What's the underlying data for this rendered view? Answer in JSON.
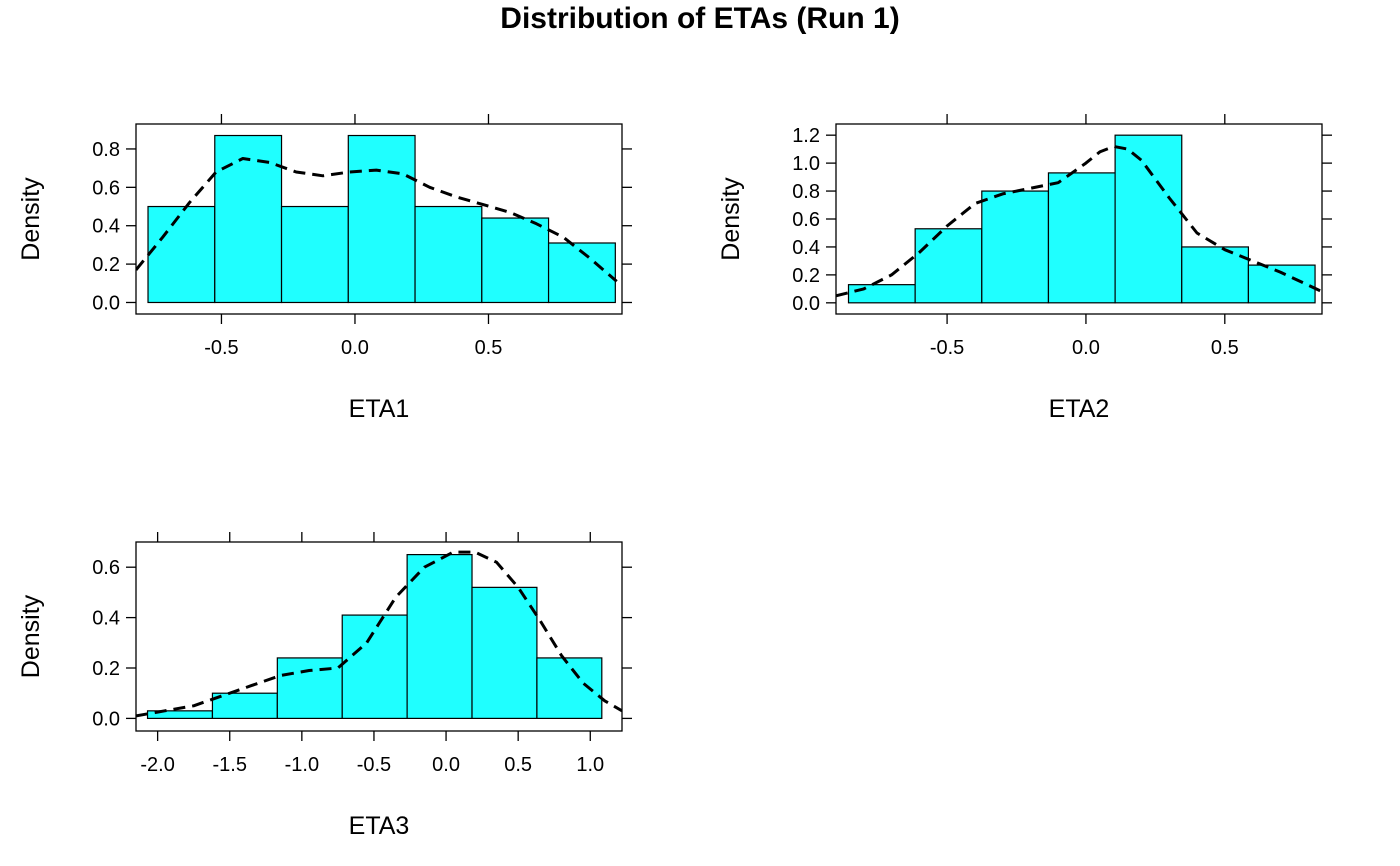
{
  "title": "Distribution of ETAs (Run 1)",
  "colors": {
    "bar_fill": "#1FFFFF",
    "bar_stroke": "#000000",
    "density_line": "#000000"
  },
  "chart_data": [
    {
      "type": "histogram",
      "xlabel": "ETA1",
      "ylabel": "Density",
      "xlim": [
        -0.82,
        1.0
      ],
      "ylim": [
        -0.06,
        0.93
      ],
      "xticks": [
        -0.5,
        0.0,
        0.5
      ],
      "xtick_labels": [
        "-0.5",
        "0.0",
        "0.5"
      ],
      "yticks": [
        0.0,
        0.2,
        0.4,
        0.6,
        0.8
      ],
      "ytick_labels": [
        "0.0",
        "0.2",
        "0.4",
        "0.6",
        "0.8"
      ],
      "bins": [
        {
          "x0": -0.775,
          "x1": -0.525,
          "density": 0.5
        },
        {
          "x0": -0.525,
          "x1": -0.275,
          "density": 0.87
        },
        {
          "x0": -0.275,
          "x1": -0.025,
          "density": 0.5
        },
        {
          "x0": -0.025,
          "x1": 0.225,
          "density": 0.87
        },
        {
          "x0": 0.225,
          "x1": 0.475,
          "density": 0.5
        },
        {
          "x0": 0.475,
          "x1": 0.725,
          "density": 0.44
        },
        {
          "x0": 0.725,
          "x1": 0.975,
          "density": 0.31
        }
      ],
      "density_curve": {
        "x": [
          -0.82,
          -0.72,
          -0.62,
          -0.52,
          -0.42,
          -0.32,
          -0.22,
          -0.12,
          -0.02,
          0.08,
          0.18,
          0.28,
          0.38,
          0.48,
          0.58,
          0.68,
          0.78,
          0.88,
          0.98
        ],
        "y": [
          0.17,
          0.34,
          0.52,
          0.68,
          0.75,
          0.73,
          0.68,
          0.66,
          0.68,
          0.69,
          0.67,
          0.6,
          0.55,
          0.51,
          0.47,
          0.41,
          0.34,
          0.23,
          0.11
        ]
      }
    },
    {
      "type": "histogram",
      "xlabel": "ETA2",
      "ylabel": "Density",
      "xlim": [
        -0.9,
        0.85
      ],
      "ylim": [
        -0.08,
        1.28
      ],
      "xticks": [
        -0.5,
        0.0,
        0.5
      ],
      "xtick_labels": [
        "-0.5",
        "0.0",
        "0.5"
      ],
      "yticks": [
        0.0,
        0.2,
        0.4,
        0.6,
        0.8,
        1.0,
        1.2
      ],
      "ytick_labels": [
        "0.0",
        "0.2",
        "0.4",
        "0.6",
        "0.8",
        "1.0",
        "1.2"
      ],
      "bins": [
        {
          "x0": -0.855,
          "x1": -0.615,
          "density": 0.13
        },
        {
          "x0": -0.615,
          "x1": -0.375,
          "density": 0.53
        },
        {
          "x0": -0.375,
          "x1": -0.135,
          "density": 0.8
        },
        {
          "x0": -0.135,
          "x1": 0.105,
          "density": 0.93
        },
        {
          "x0": 0.105,
          "x1": 0.345,
          "density": 1.2
        },
        {
          "x0": 0.345,
          "x1": 0.585,
          "density": 0.4
        },
        {
          "x0": 0.585,
          "x1": 0.825,
          "density": 0.27
        }
      ],
      "density_curve": {
        "x": [
          -0.9,
          -0.8,
          -0.7,
          -0.6,
          -0.5,
          -0.4,
          -0.3,
          -0.2,
          -0.1,
          0.0,
          0.05,
          0.1,
          0.15,
          0.2,
          0.3,
          0.4,
          0.5,
          0.6,
          0.7,
          0.85
        ],
        "y": [
          0.05,
          0.1,
          0.2,
          0.36,
          0.55,
          0.71,
          0.78,
          0.82,
          0.86,
          1.0,
          1.08,
          1.12,
          1.1,
          1.02,
          0.75,
          0.5,
          0.38,
          0.3,
          0.22,
          0.08
        ]
      }
    },
    {
      "type": "histogram",
      "xlabel": "ETA3",
      "ylabel": "Density",
      "xlim": [
        -2.15,
        1.22
      ],
      "ylim": [
        -0.05,
        0.7
      ],
      "xticks": [
        -2.0,
        -1.5,
        -1.0,
        -0.5,
        0.0,
        0.5,
        1.0
      ],
      "xtick_labels": [
        "-2.0",
        "-1.5",
        "-1.0",
        "-0.5",
        "0.0",
        "0.5",
        "1.0"
      ],
      "yticks": [
        0.0,
        0.2,
        0.4,
        0.6
      ],
      "ytick_labels": [
        "0.0",
        "0.2",
        "0.4",
        "0.6"
      ],
      "bins": [
        {
          "x0": -2.07,
          "x1": -1.62,
          "density": 0.03
        },
        {
          "x0": -1.62,
          "x1": -1.17,
          "density": 0.1
        },
        {
          "x0": -1.17,
          "x1": -0.72,
          "density": 0.24
        },
        {
          "x0": -0.72,
          "x1": -0.27,
          "density": 0.41
        },
        {
          "x0": -0.27,
          "x1": 0.18,
          "density": 0.65
        },
        {
          "x0": 0.18,
          "x1": 0.63,
          "density": 0.52
        },
        {
          "x0": 0.63,
          "x1": 1.08,
          "density": 0.24
        }
      ],
      "density_curve": {
        "x": [
          -2.15,
          -1.95,
          -1.75,
          -1.55,
          -1.35,
          -1.15,
          -0.95,
          -0.75,
          -0.55,
          -0.35,
          -0.15,
          0.05,
          0.2,
          0.35,
          0.5,
          0.65,
          0.8,
          0.95,
          1.1,
          1.22
        ],
        "y": [
          0.01,
          0.03,
          0.05,
          0.09,
          0.13,
          0.17,
          0.19,
          0.2,
          0.3,
          0.48,
          0.6,
          0.66,
          0.66,
          0.62,
          0.52,
          0.39,
          0.25,
          0.14,
          0.07,
          0.03
        ]
      }
    }
  ]
}
